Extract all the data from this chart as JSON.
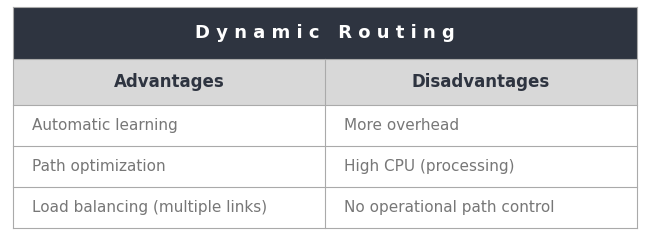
{
  "title": "D y n a m i c   R o u t i n g",
  "title_bg": "#2e3440",
  "title_color": "#ffffff",
  "title_fontsize": 13,
  "header_bg": "#d8d8d8",
  "header_color": "#2e3440",
  "header_fontsize": 12,
  "row_color": "#777777",
  "row_fontsize": 11,
  "col_headers": [
    "Advantages",
    "Disadvantages"
  ],
  "rows": [
    [
      "Automatic learning",
      "More overhead"
    ],
    [
      "Path optimization",
      "High CPU (processing)"
    ],
    [
      "Load balancing (multiple links)",
      "No operational path control"
    ]
  ],
  "border_color": "#aaaaaa",
  "bg_color": "#ffffff"
}
